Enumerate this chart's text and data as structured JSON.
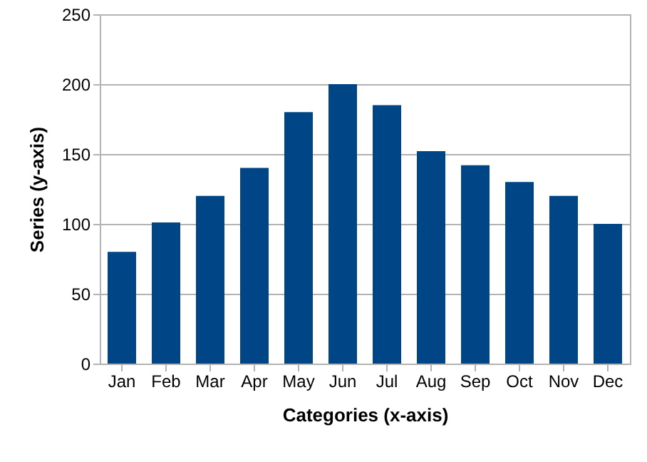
{
  "chart_data": {
    "type": "bar",
    "categories": [
      "Jan",
      "Feb",
      "Mar",
      "Apr",
      "May",
      "Jun",
      "Jul",
      "Aug",
      "Sep",
      "Oct",
      "Nov",
      "Dec"
    ],
    "values": [
      80,
      101,
      120,
      140,
      180,
      200,
      185,
      152,
      142,
      130,
      120,
      100
    ],
    "color": "#004586",
    "xlabel": "Categories (x-axis)",
    "ylabel": "Series (y-axis)",
    "ylim": [
      0,
      250
    ],
    "yticks": [
      0,
      50,
      100,
      150,
      200,
      250
    ],
    "grid": "y"
  }
}
